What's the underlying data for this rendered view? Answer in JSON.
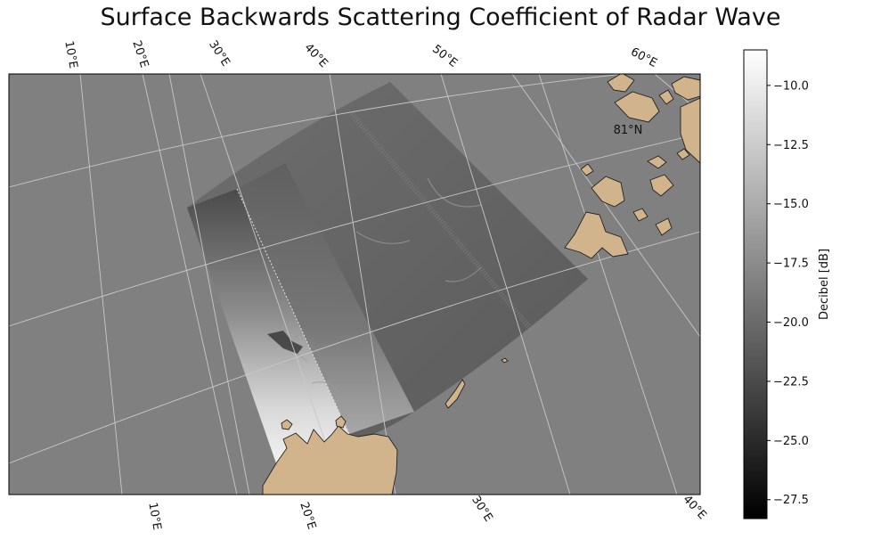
{
  "title": "Surface Backwards Scattering Coefficient of Radar Wave",
  "colors": {
    "ocean": "#808080",
    "land": "#d2b48c",
    "coast": "#222222",
    "grid": "#c8c8c8"
  },
  "top_lon_labels": [
    "10°E",
    "20°E",
    "30°E",
    "40°E",
    "50°E",
    "60°E"
  ],
  "bottom_lon_labels": [
    "10°E",
    "20°E",
    "30°E",
    "40°E"
  ],
  "lat_label": "81°N",
  "colorbar": {
    "label": "Decibel [dB]",
    "min": -28.3,
    "max": -8.5,
    "ticks": [
      "−10.0",
      "−12.5",
      "−15.0",
      "−17.5",
      "−20.0",
      "−22.5",
      "−25.0",
      "−27.5"
    ]
  }
}
